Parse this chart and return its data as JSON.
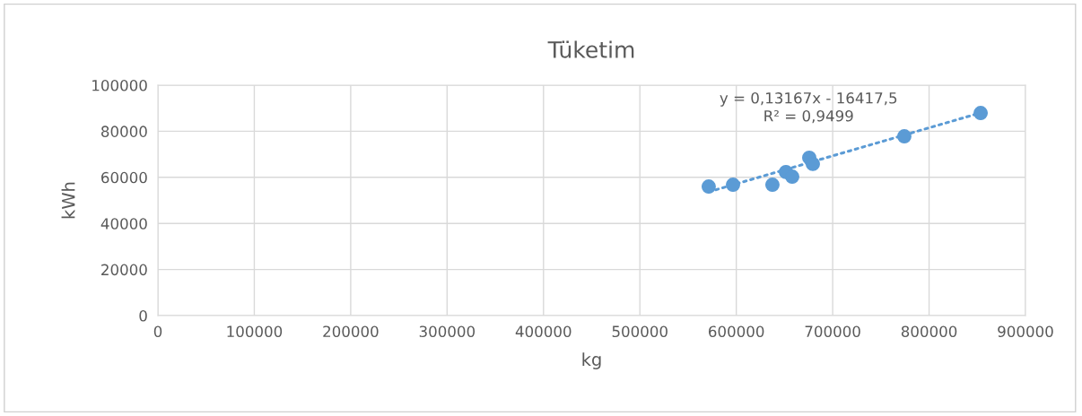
{
  "chart_data": {
    "type": "scatter",
    "title": "Tüketim",
    "xlabel": "kg",
    "ylabel": "kWh",
    "xlim": [
      0,
      900000
    ],
    "xticks": [
      0,
      100000,
      200000,
      300000,
      400000,
      500000,
      600000,
      700000,
      800000,
      900000
    ],
    "ylim": [
      0,
      100000
    ],
    "yticks": [
      0,
      20000,
      40000,
      60000,
      80000,
      100000
    ],
    "grid": true,
    "legend": false,
    "series": [
      {
        "color": "#5b9bd5",
        "marker": "circle",
        "x": [
          571400,
          596600,
          637500,
          651500,
          658000,
          675700,
          679400,
          774300,
          853500
        ],
        "values": [
          56000,
          56800,
          56800,
          62300,
          60300,
          68500,
          65800,
          77800,
          87900
        ]
      },
      {
        "type": "line",
        "color": "#5b9bd5",
        "line_style": "dotted",
        "x": [
          571400,
          853500
        ],
        "values": [
          53700,
          88000
        ]
      }
    ],
    "annotations": [
      "y = 0,13167x - 16417,5\nR² = 0,9499"
    ]
  }
}
